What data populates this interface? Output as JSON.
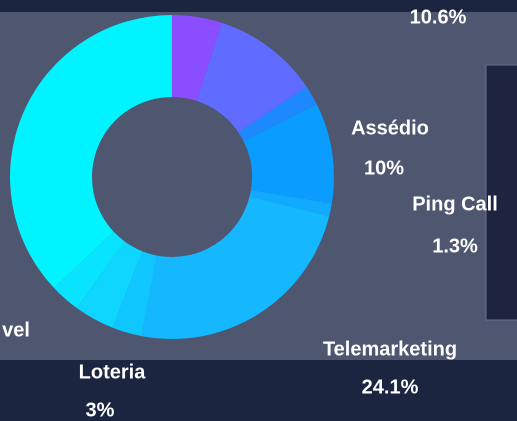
{
  "chart_data": {
    "type": "donut",
    "categories": [
      null,
      null,
      null,
      "Assédio",
      "Ping Call",
      "Telemarketing",
      "Loteria",
      null,
      "vel",
      null
    ],
    "values": [
      5,
      10.6,
      2,
      10,
      1.3,
      24.1,
      3,
      4,
      3,
      37
    ],
    "value_labels": [
      null,
      "10.6%",
      null,
      "10%",
      "1.3%",
      "24.1%",
      "3%",
      null,
      null,
      null
    ],
    "colors": [
      "#8a4dff",
      "#5f6cff",
      "#1e88ff",
      "#0a9cff",
      "#12aaff",
      "#15b8ff",
      "#10c6ff",
      "#0ed6ff",
      "#08e4ff",
      "#00f4ff"
    ]
  }
}
